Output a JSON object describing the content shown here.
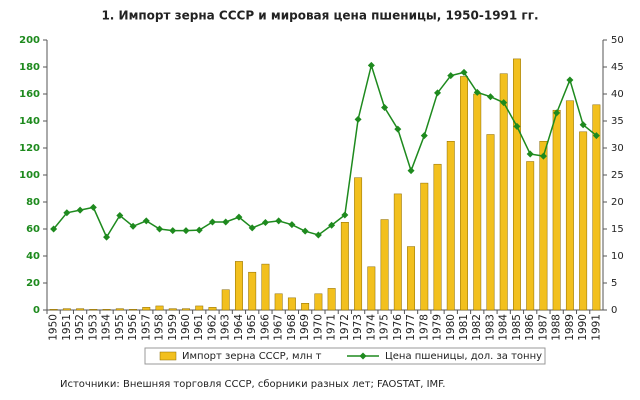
{
  "chart_data": {
    "type": "bar",
    "title": "1. Импорт зерна СССР и мировая цена пшеницы, 1950-1991 гг.",
    "categories": [
      "1950",
      "1951",
      "1952",
      "1953",
      "1954",
      "1955",
      "1956",
      "1957",
      "1958",
      "1959",
      "1960",
      "1961",
      "1962",
      "1963",
      "1964",
      "1965",
      "1966",
      "1967",
      "1968",
      "1969",
      "1970",
      "1971",
      "1972",
      "1973",
      "1974",
      "1975",
      "1976",
      "1977",
      "1978",
      "1979",
      "1980",
      "1981",
      "1982",
      "1983",
      "1984",
      "1985",
      "1986",
      "1987",
      "1988",
      "1989",
      "1990",
      "1991"
    ],
    "series": [
      {
        "name": "Импорт зерна СССР, млн т",
        "type": "bar",
        "color": "#f2c01e",
        "values": [
          0.5,
          1,
          1,
          0.5,
          0.5,
          1,
          0.5,
          2,
          3,
          1,
          1,
          3,
          2,
          15,
          36,
          28,
          34,
          12,
          9,
          5,
          12,
          16,
          65,
          98,
          32,
          67,
          86,
          47,
          94,
          108,
          125,
          173,
          160,
          130,
          175,
          186,
          110,
          125,
          148,
          155,
          132,
          152
        ]
      },
      {
        "name": "Цена пшеницы, дол. за тонну",
        "type": "line",
        "axis": "y2",
        "color": "#1e8a1e",
        "values": [
          15,
          18,
          18.5,
          19,
          13.5,
          17.5,
          15.5,
          16.5,
          15,
          14.7,
          14.7,
          14.8,
          16.3,
          16.3,
          17.2,
          15.2,
          16.2,
          16.5,
          15.8,
          14.6,
          13.9,
          15.7,
          17.6,
          35.3,
          45.3,
          37.5,
          33.5,
          25.8,
          32.3,
          40.2,
          43.4,
          44,
          40.3,
          39.5,
          38.4,
          34,
          28.9,
          28.5,
          36.5,
          42.6,
          34.3,
          32.3
        ]
      }
    ],
    "ylim": [
      0,
      200
    ],
    "yticks": [
      0,
      20,
      40,
      60,
      80,
      100,
      120,
      140,
      160,
      180,
      200
    ],
    "y2lim": [
      0,
      50
    ],
    "y2ticks": [
      0,
      5,
      10,
      15,
      20,
      25,
      30,
      35,
      40,
      45,
      50
    ],
    "source": "Источники: Внешняя торговля СССР, сборники разных лет; FAOSTAT, IMF."
  }
}
